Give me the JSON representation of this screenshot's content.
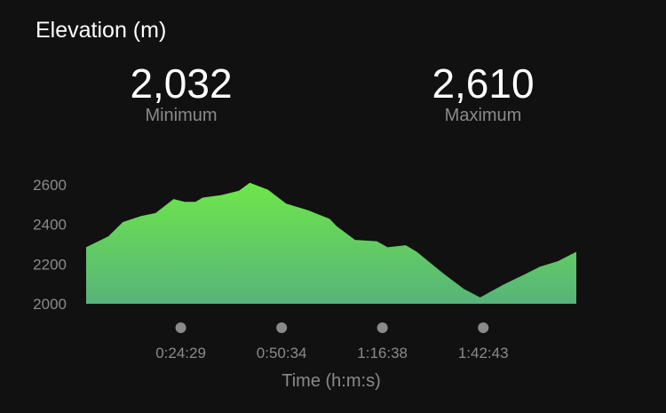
{
  "title": "Elevation (m)",
  "stats": {
    "minimum": {
      "value": "2,032",
      "label": "Minimum"
    },
    "maximum": {
      "value": "2,610",
      "label": "Maximum"
    }
  },
  "colors": {
    "background": "#111111",
    "fill_top": "#6ee64a",
    "fill_bottom": "#57b47a",
    "text_muted": "#8a8a8a",
    "marker": "#8a8a8a"
  },
  "chart_data": {
    "type": "area",
    "xlabel": "Time (h:m:s)",
    "ylabel": "",
    "ylim": [
      2000,
      2600
    ],
    "xlim": [
      "0:00:00",
      "2:06:47"
    ],
    "y_ticks": [
      "2000",
      "2200",
      "2400",
      "2600"
    ],
    "x_ticks": [
      "0:24:29",
      "0:50:34",
      "1:16:38",
      "1:42:43"
    ],
    "grid": false,
    "x": [
      "0:00:00",
      "0:05:45",
      "0:09:31",
      "0:14:12",
      "0:17:57",
      "0:22:38",
      "0:25:28",
      "0:28:16",
      "0:30:09",
      "0:34:51",
      "0:39:32",
      "0:42:20",
      "0:47:02",
      "0:51:43",
      "0:57:20",
      "1:02:58",
      "1:04:51",
      "1:09:33",
      "1:15:11",
      "1:17:59",
      "1:22:40",
      "1:25:30",
      "1:32:04",
      "1:37:41",
      "1:41:55",
      "1:48:01",
      "1:53:38",
      "1:57:24",
      "2:02:05",
      "2:06:47"
    ],
    "y": [
      2285,
      2340,
      2412,
      2442,
      2457,
      2528,
      2514,
      2514,
      2535,
      2547,
      2570,
      2610,
      2575,
      2505,
      2472,
      2428,
      2390,
      2322,
      2315,
      2285,
      2295,
      2262,
      2158,
      2075,
      2032,
      2097,
      2150,
      2187,
      2215,
      2262
    ]
  }
}
